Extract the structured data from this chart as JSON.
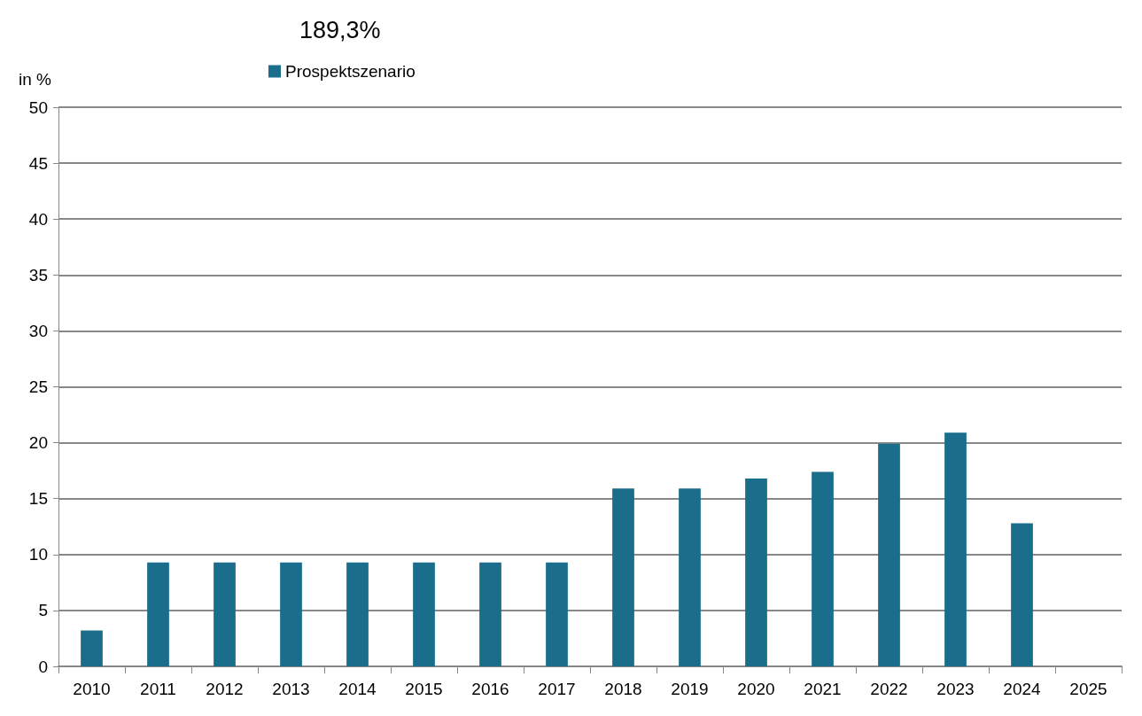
{
  "chart_data": {
    "type": "bar",
    "ylabel": "in %",
    "annotations": [
      "189,3%"
    ],
    "categories": [
      "2010",
      "2011",
      "2012",
      "2013",
      "2014",
      "2015",
      "2016",
      "2017",
      "2018",
      "2019",
      "2020",
      "2021",
      "2022",
      "2023",
      "2024",
      "2025"
    ],
    "series": [
      {
        "name": "Prospektszenario",
        "color": "#1a6e8c",
        "values": [
          3.2,
          9.3,
          9.3,
          9.3,
          9.3,
          9.3,
          9.3,
          9.3,
          15.9,
          15.9,
          16.8,
          17.4,
          19.9,
          20.9,
          12.8,
          null
        ]
      }
    ],
    "ylim": [
      0,
      50
    ],
    "yticks": [
      0,
      5,
      10,
      15,
      20,
      25,
      30,
      35,
      40,
      45,
      50
    ],
    "grid": "y",
    "legend": "top"
  }
}
